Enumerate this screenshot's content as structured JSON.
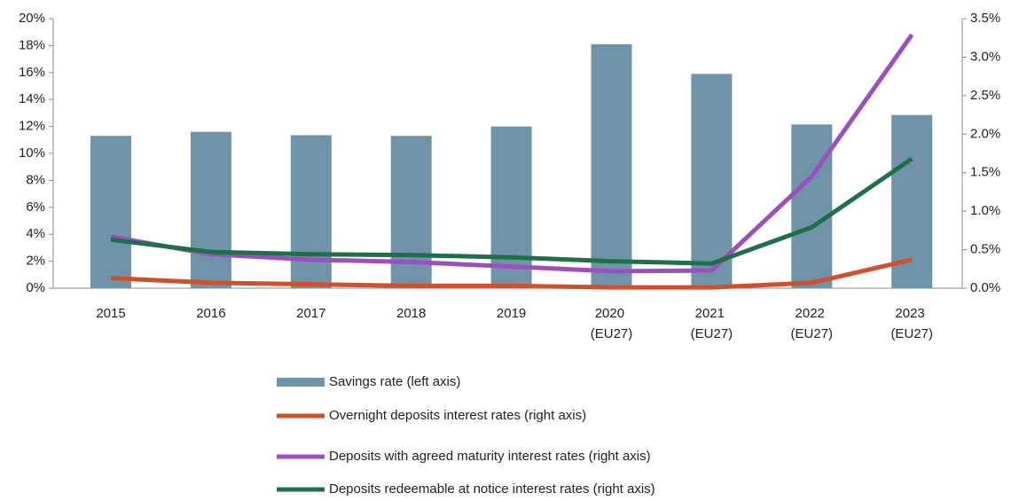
{
  "chart_data": {
    "type": "bar-line",
    "categories": [
      "2015",
      "2016",
      "2017",
      "2018",
      "2019",
      "2020 (EU27)",
      "2021 (EU27)",
      "2022 (EU27)",
      "2023 (EU27)"
    ],
    "series": [
      {
        "name": "Savings rate (left axis)",
        "type": "bar",
        "color": "#6f94a9",
        "values": [
          11.3,
          11.6,
          11.35,
          11.3,
          12.0,
          18.1,
          15.9,
          12.15,
          12.85
        ]
      },
      {
        "name": "Overnight deposits interest rates (right axis)",
        "type": "line",
        "axis": "y2",
        "color": "#d24f2b",
        "values": [
          0.13,
          0.07,
          0.05,
          0.03,
          0.03,
          0.01,
          0.01,
          0.07,
          0.37
        ]
      },
      {
        "name": "Deposits with agreed maturity interest rates (right axis)",
        "type": "line",
        "axis": "y2",
        "color": "#9b4fc0",
        "values": [
          0.67,
          0.44,
          0.37,
          0.34,
          0.28,
          0.22,
          0.23,
          1.45,
          3.29
        ]
      },
      {
        "name": "Deposits redeemable at notice interest rates (right axis)",
        "type": "line",
        "axis": "y2",
        "color": "#1e7048",
        "values": [
          0.63,
          0.47,
          0.44,
          0.43,
          0.4,
          0.35,
          0.32,
          0.79,
          1.68
        ]
      }
    ],
    "ylim": [
      0,
      20
    ],
    "yticks": [
      {
        "value": 0,
        "label": "0%"
      },
      {
        "value": 2,
        "label": "2%"
      },
      {
        "value": 4,
        "label": "4%"
      },
      {
        "value": 6,
        "label": "6%"
      },
      {
        "value": 8,
        "label": "8%"
      },
      {
        "value": 10,
        "label": "10%"
      },
      {
        "value": 12,
        "label": "12%"
      },
      {
        "value": 14,
        "label": "14%"
      },
      {
        "value": 16,
        "label": "16%"
      },
      {
        "value": 18,
        "label": "18%"
      },
      {
        "value": 20,
        "label": "20%"
      }
    ],
    "y2lim": [
      0,
      3.5
    ],
    "y2ticks": [
      {
        "value": 0,
        "label": "0.0%"
      },
      {
        "value": 0.5,
        "label": "0.5%"
      },
      {
        "value": 1,
        "label": "1.0%"
      },
      {
        "value": 1.5,
        "label": "1.5%"
      },
      {
        "value": 2,
        "label": "2.0%"
      },
      {
        "value": 2.5,
        "label": "2.5%"
      },
      {
        "value": 3,
        "label": "3.0%"
      },
      {
        "value": 3.5,
        "label": "3.5%"
      }
    ],
    "legend": "bottom"
  }
}
